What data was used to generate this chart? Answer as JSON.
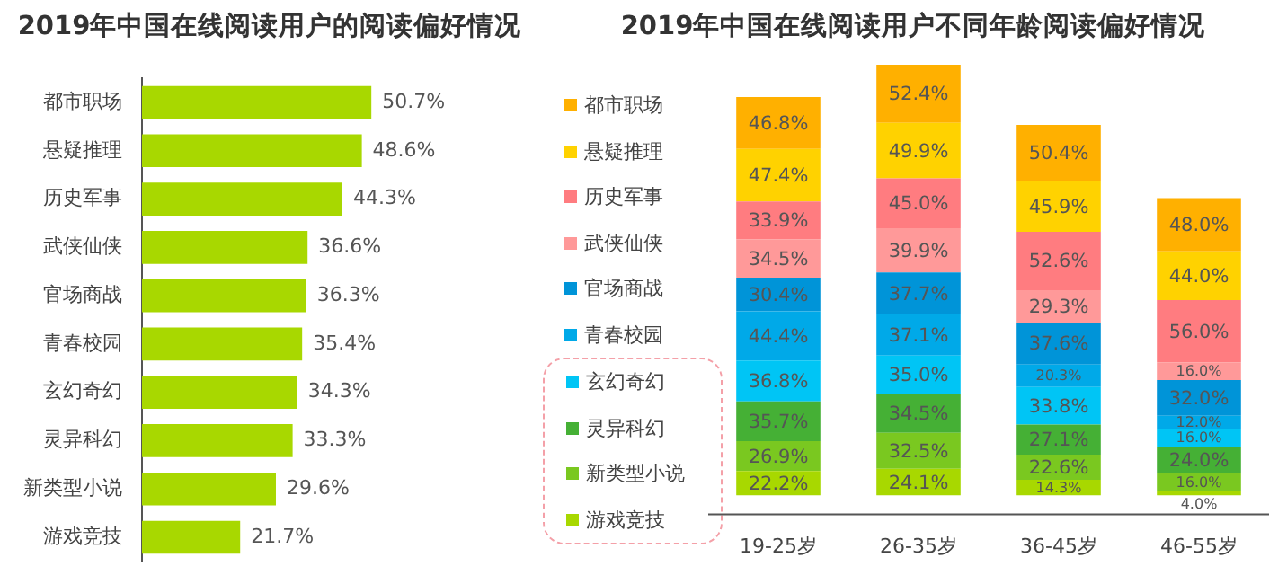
{
  "chart_data": [
    {
      "type": "bar",
      "title": "2019年中国在线阅读用户的阅读偏好情况",
      "orientation": "horizontal",
      "categories": [
        "都市职场",
        "悬疑推理",
        "历史军事",
        "武侠仙侠",
        "官场商战",
        "青春校园",
        "玄幻奇幻",
        "灵异科幻",
        "新类型小说",
        "游戏竞技"
      ],
      "values": [
        50.7,
        48.6,
        44.3,
        36.6,
        36.3,
        35.4,
        34.3,
        33.3,
        29.6,
        21.7
      ],
      "color": "#a8d800",
      "value_labels": [
        "50.7%",
        "48.6%",
        "44.3%",
        "36.6%",
        "36.3%",
        "35.4%",
        "34.3%",
        "33.3%",
        "29.6%",
        "21.7%"
      ],
      "legend": false
    },
    {
      "type": "bar",
      "title": "2019年中国在线阅读用户不同年龄阅读偏好情况",
      "stacked": true,
      "legend": "left",
      "categories": [
        "19-25岁",
        "26-35岁",
        "36-45岁",
        "46-55岁"
      ],
      "series": [
        {
          "name": "游戏竞技",
          "color": "#a8d800",
          "values": [
            22.2,
            24.1,
            14.3,
            4.0
          ],
          "value_labels": [
            "22.2%",
            "24.1%",
            "14.3%",
            "4.0%"
          ]
        },
        {
          "name": "新类型小说",
          "color": "#7ac820",
          "values": [
            26.9,
            32.5,
            22.6,
            16.0
          ],
          "value_labels": [
            "26.9%",
            "32.5%",
            "22.6%",
            "16.0%"
          ]
        },
        {
          "name": "灵异科幻",
          "color": "#45b035",
          "values": [
            35.7,
            34.5,
            27.1,
            24.0
          ],
          "value_labels": [
            "35.7%",
            "34.5%",
            "27.1%",
            "24.0%"
          ]
        },
        {
          "name": "玄幻奇幻",
          "color": "#00c5f5",
          "values": [
            36.8,
            35.0,
            33.8,
            16.0
          ],
          "value_labels": [
            "36.8%",
            "35.0%",
            "33.8%",
            "16.0%"
          ]
        },
        {
          "name": "青春校园",
          "color": "#00a9e8",
          "values": [
            44.4,
            37.1,
            20.3,
            12.0
          ],
          "value_labels": [
            "44.4%",
            "37.1%",
            "20.3%",
            "12.0%"
          ]
        },
        {
          "name": "官场商战",
          "color": "#0094d8",
          "values": [
            30.4,
            37.7,
            37.6,
            32.0
          ],
          "value_labels": [
            "30.4%",
            "37.7%",
            "37.6%",
            "32.0%"
          ]
        },
        {
          "name": "武侠仙侠",
          "color": "#ff9999",
          "values": [
            34.5,
            39.9,
            29.3,
            16.0
          ],
          "value_labels": [
            "34.5%",
            "39.9%",
            "29.3%",
            "16.0%"
          ]
        },
        {
          "name": "历史军事",
          "color": "#ff7c80",
          "values": [
            33.9,
            45.0,
            52.6,
            56.0
          ],
          "value_labels": [
            "33.9%",
            "45.0%",
            "52.6%",
            "56.0%"
          ]
        },
        {
          "name": "悬疑推理",
          "color": "#ffd200",
          "values": [
            47.4,
            49.9,
            45.9,
            44.0
          ],
          "value_labels": [
            "47.4%",
            "49.9%",
            "45.9%",
            "44.0%"
          ]
        },
        {
          "name": "都市职场",
          "color": "#ffb000",
          "values": [
            46.8,
            52.4,
            50.4,
            48.0
          ],
          "value_labels": [
            "46.8%",
            "52.4%",
            "50.4%",
            "48.0%"
          ]
        }
      ]
    }
  ]
}
